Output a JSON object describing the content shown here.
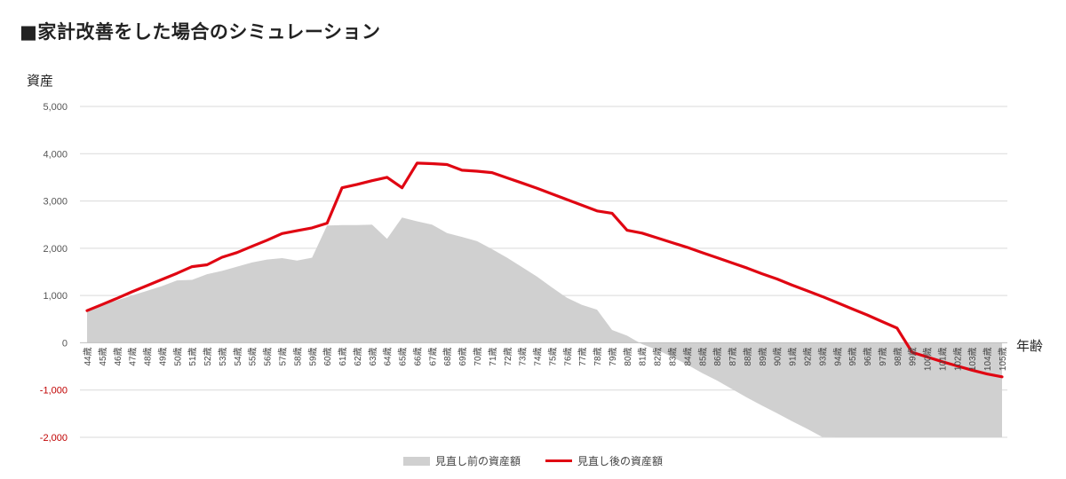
{
  "chart_data": {
    "type": "area",
    "title": "■家計改善をした場合のシミュレーション",
    "ylabel": "資産",
    "xlabel": "年齢",
    "ylim": [
      -2000,
      5000
    ],
    "yticks": [
      {
        "value": 5000,
        "label": "5,000"
      },
      {
        "value": 4000,
        "label": "4,000"
      },
      {
        "value": 3000,
        "label": "3,000"
      },
      {
        "value": 2000,
        "label": "2,000"
      },
      {
        "value": 1000,
        "label": "1,000"
      },
      {
        "value": 0,
        "label": "0"
      },
      {
        "value": -1000,
        "label": "-1,000"
      },
      {
        "value": -2000,
        "label": "-2,000"
      }
    ],
    "categories": [
      "44歳",
      "45歳",
      "46歳",
      "47歳",
      "48歳",
      "49歳",
      "50歳",
      "51歳",
      "52歳",
      "53歳",
      "54歳",
      "55歳",
      "56歳",
      "57歳",
      "58歳",
      "59歳",
      "60歳",
      "61歳",
      "62歳",
      "63歳",
      "64歳",
      "65歳",
      "66歳",
      "67歳",
      "68歳",
      "69歳",
      "70歳",
      "71歳",
      "72歳",
      "73歳",
      "74歳",
      "75歳",
      "76歳",
      "77歳",
      "78歳",
      "79歳",
      "80歳",
      "81歳",
      "82歳",
      "83歳",
      "84歳",
      "85歳",
      "86歳",
      "87歳",
      "88歳",
      "89歳",
      "90歳",
      "91歳",
      "92歳",
      "93歳",
      "94歳",
      "95歳",
      "96歳",
      "97歳",
      "98歳",
      "99歳",
      "100歳",
      "101歳",
      "102歳",
      "103歳",
      "104歳",
      "105歳"
    ],
    "series": [
      {
        "name": "見直し前の資産額",
        "type": "area",
        "color": "#d0d0d0",
        "values": [
          700,
          800,
          900,
          1000,
          1100,
          1200,
          1320,
          1330,
          1450,
          1520,
          1610,
          1700,
          1760,
          1790,
          1740,
          1800,
          2480,
          2490,
          2490,
          2500,
          2200,
          2650,
          2570,
          2500,
          2320,
          2240,
          2150,
          1980,
          1800,
          1600,
          1400,
          1170,
          950,
          800,
          700,
          270,
          150,
          -30,
          -150,
          -300,
          -460,
          -640,
          -800,
          -980,
          -1160,
          -1330,
          -1490,
          -1660,
          -1820,
          -1990,
          -2000,
          -2000,
          -2000,
          -2000,
          -2000,
          -2000,
          -2000,
          -2000,
          -2000,
          -2000,
          -2000,
          -2000
        ]
      },
      {
        "name": "見直し後の資産額",
        "type": "line",
        "color": "#e00612",
        "values": [
          680,
          810,
          940,
          1080,
          1210,
          1340,
          1470,
          1610,
          1650,
          1810,
          1910,
          2040,
          2170,
          2310,
          2370,
          2430,
          2530,
          3280,
          3350,
          3430,
          3500,
          3280,
          3800,
          3790,
          3770,
          3650,
          3630,
          3600,
          3490,
          3380,
          3270,
          3150,
          3030,
          2910,
          2790,
          2740,
          2380,
          2320,
          2220,
          2120,
          2020,
          1910,
          1800,
          1690,
          1580,
          1460,
          1350,
          1220,
          1100,
          980,
          850,
          720,
          590,
          450,
          310,
          -200,
          -300,
          -400,
          -490,
          -580,
          -660,
          -720
        ]
      }
    ],
    "grid": true,
    "legend_position": "bottom"
  }
}
